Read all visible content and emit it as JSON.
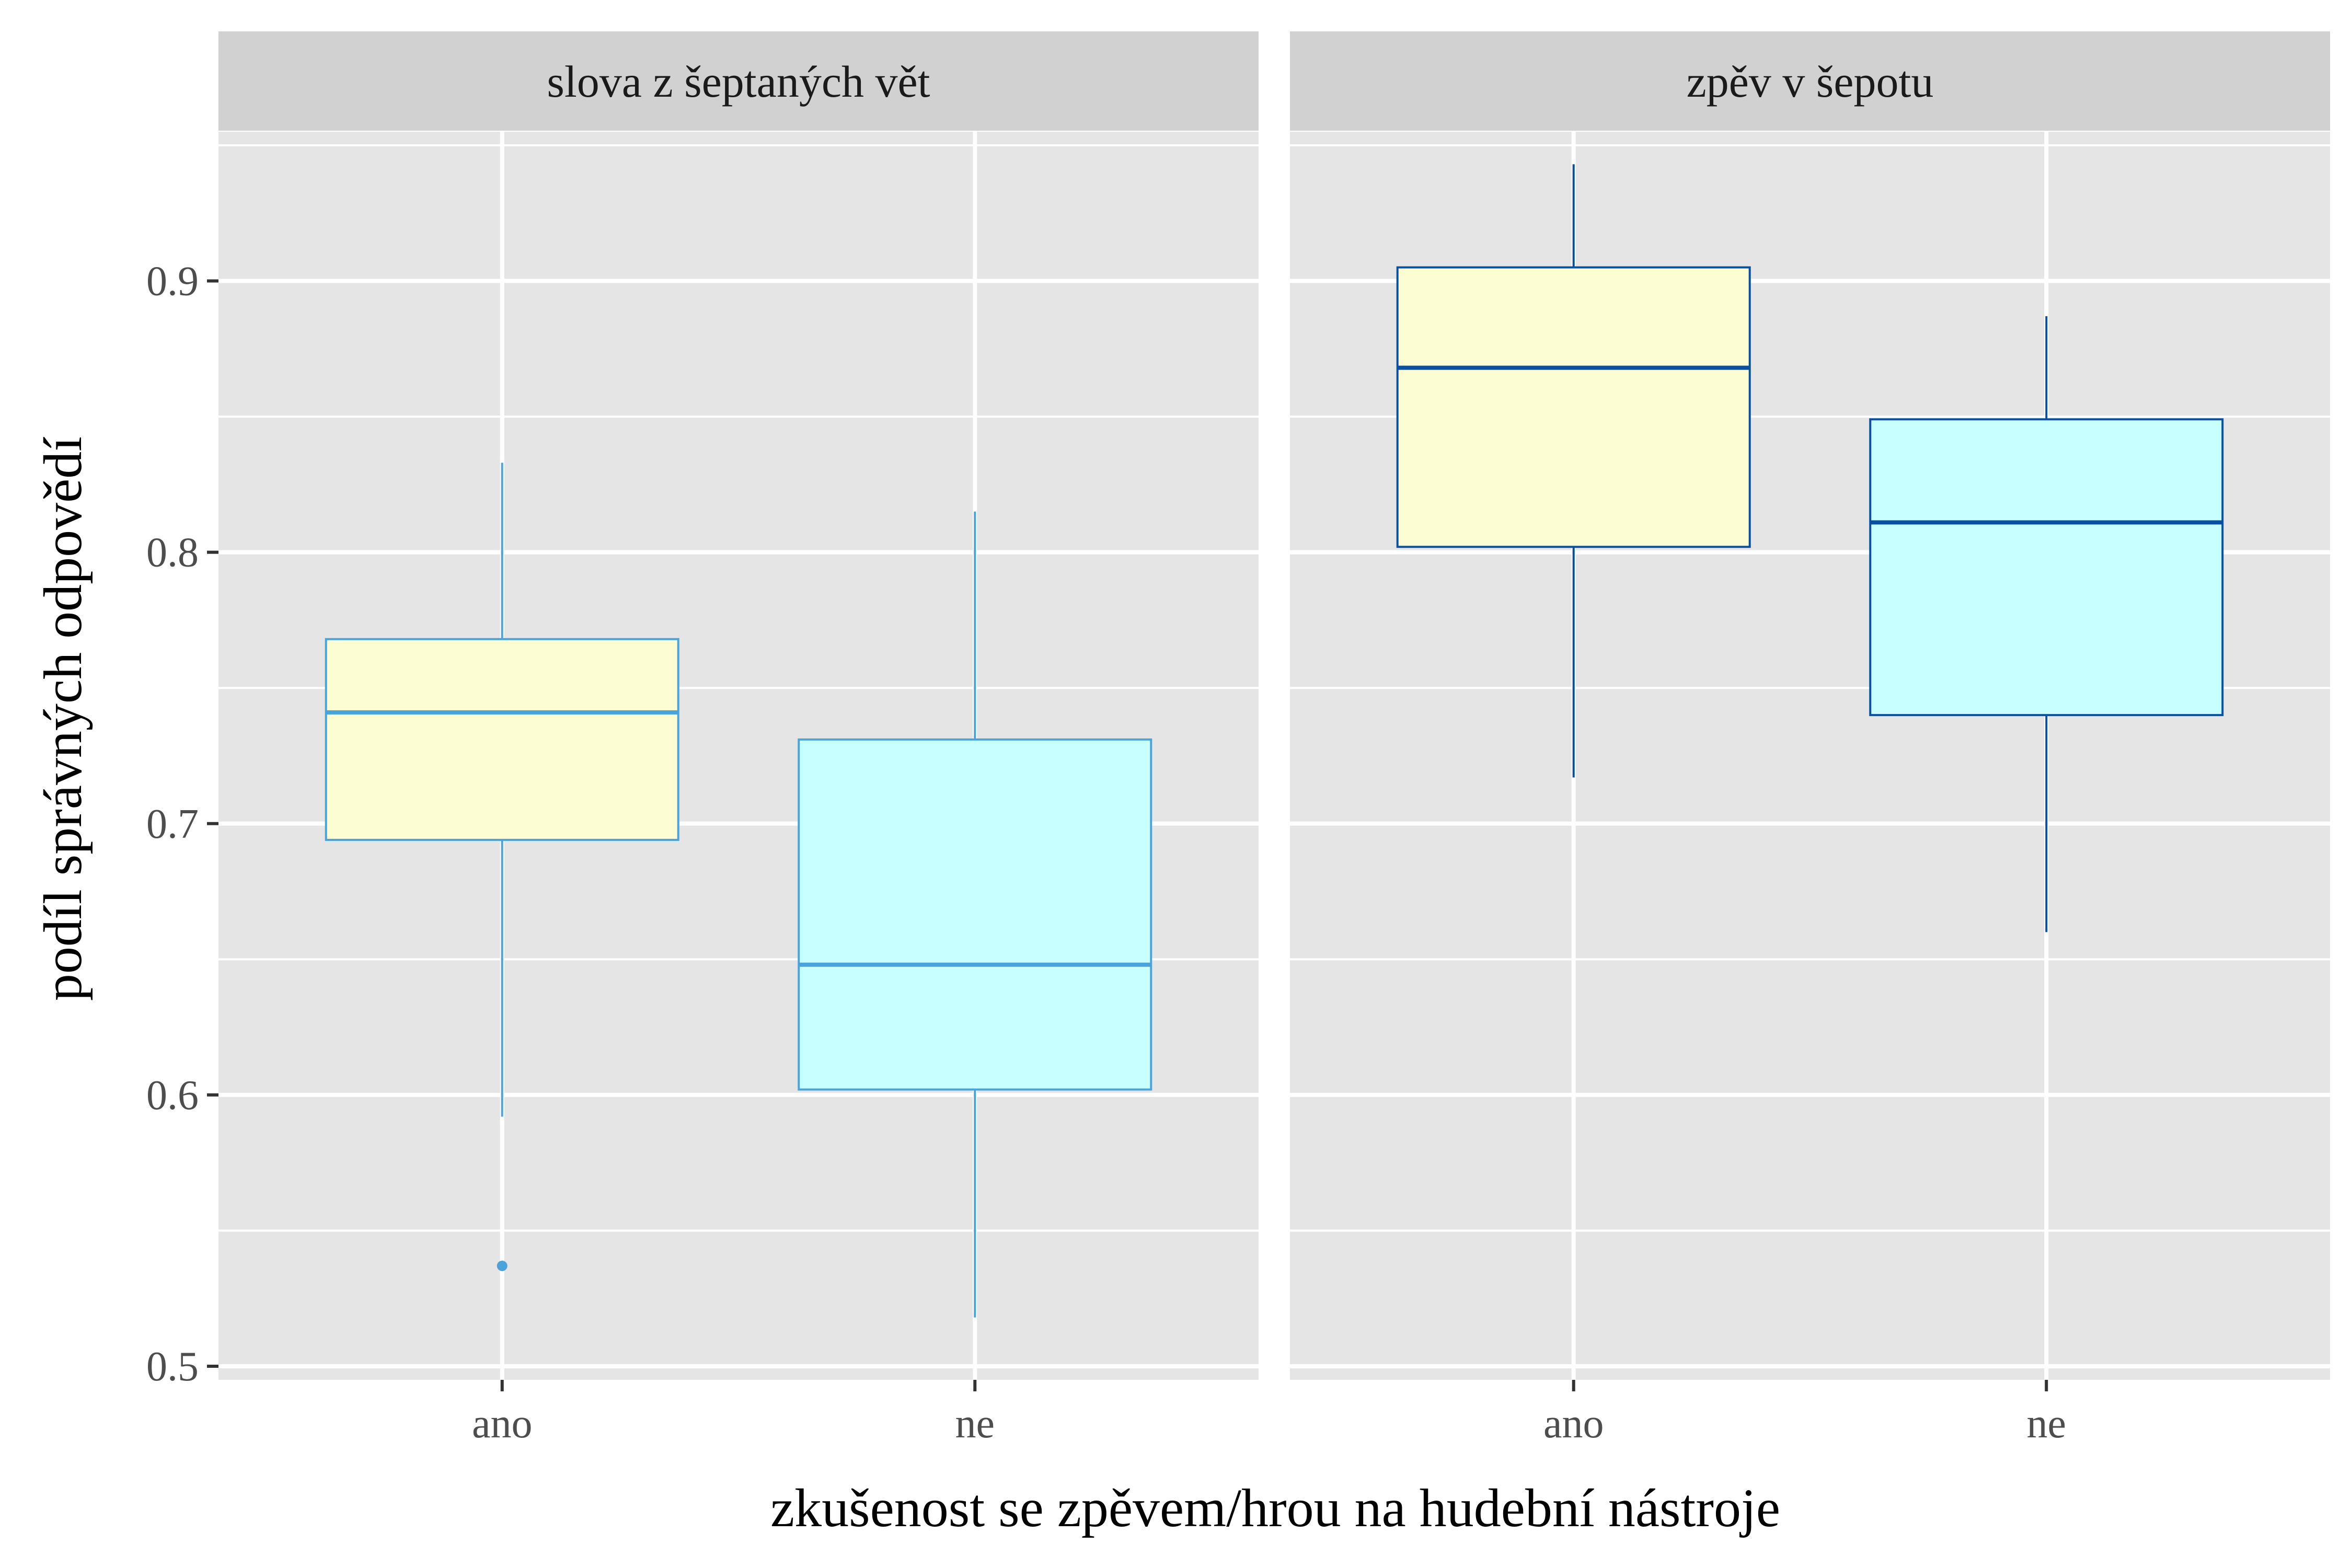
{
  "chart_data": {
    "type": "boxplot",
    "xlabel": "zkušenost se zpěvem/hrou na hudební nástroje",
    "ylabel": "podíl správných odpovědí",
    "ylim": [
      0.495,
      0.955
    ],
    "yticks": [
      0.5,
      0.6,
      0.7,
      0.8,
      0.9
    ],
    "ytick_labels": [
      "0.5",
      "0.6",
      "0.7",
      "0.8",
      "0.9"
    ],
    "categories": [
      "ano",
      "ne"
    ],
    "grid": true,
    "colors": {
      "panel_bg": "#e5e5e5",
      "strip_bg": "#d1d1d1",
      "grid": "#ffffff",
      "fill_ano": "#fdfdd3",
      "fill_ne": "#c8ffff",
      "line_panel1": "#4ba3dc",
      "line_panel2": "#0a50a0"
    },
    "panels": [
      {
        "title": "slova z šeptaných vět",
        "line_color": "#4ba3dc",
        "boxes": [
          {
            "category": "ano",
            "whisker_low": 0.592,
            "q1": 0.694,
            "median": 0.741,
            "q3": 0.768,
            "whisker_high": 0.833,
            "outliers": [
              0.537
            ]
          },
          {
            "category": "ne",
            "whisker_low": 0.518,
            "q1": 0.602,
            "median": 0.648,
            "q3": 0.731,
            "whisker_high": 0.815,
            "outliers": []
          }
        ]
      },
      {
        "title": "zpěv v šepotu",
        "line_color": "#0a50a0",
        "boxes": [
          {
            "category": "ano",
            "whisker_low": 0.717,
            "q1": 0.802,
            "median": 0.868,
            "q3": 0.905,
            "whisker_high": 0.943,
            "outliers": []
          },
          {
            "category": "ne",
            "whisker_low": 0.66,
            "q1": 0.74,
            "median": 0.811,
            "q3": 0.849,
            "whisker_high": 0.887,
            "outliers": []
          }
        ]
      }
    ]
  }
}
